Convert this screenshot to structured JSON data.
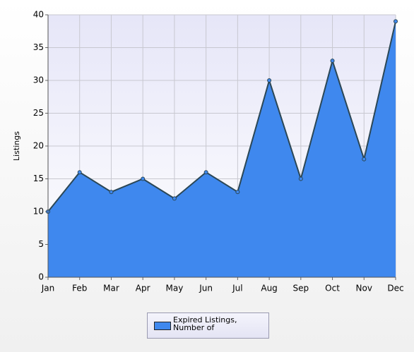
{
  "chart_data": {
    "type": "area",
    "y_label": "Listings",
    "categories": [
      "Jan",
      "Feb",
      "Mar",
      "Apr",
      "May",
      "Jun",
      "Jul",
      "Aug",
      "Sep",
      "Oct",
      "Nov",
      "Dec"
    ],
    "series": [
      {
        "name": "Expired Listings, Number of",
        "color": "#3f88ee",
        "values": [
          10,
          16,
          13,
          15,
          12,
          16,
          13,
          30,
          15,
          33,
          18,
          39
        ]
      }
    ],
    "ylim": [
      0,
      40
    ],
    "yticks": [
      0,
      5,
      10,
      15,
      20,
      25,
      30,
      35,
      40
    ],
    "grid": true,
    "legend": "bottom"
  }
}
